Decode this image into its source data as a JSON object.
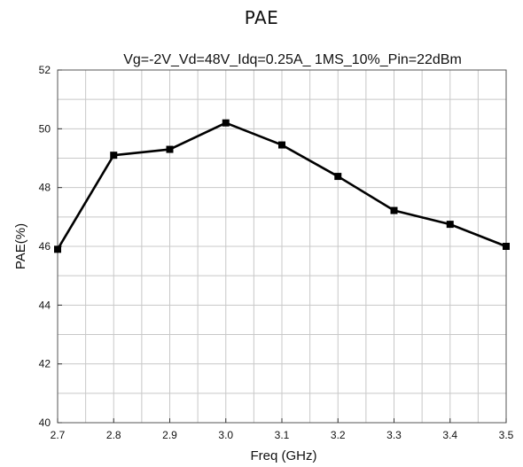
{
  "page_title": "PAE",
  "chart_data": {
    "type": "line",
    "title": "Vg=-2V_Vd=48V_Idq=0.25A_ 1MS_10%_Pin=22dBm",
    "xlabel": "Freq (GHz)",
    "ylabel": "PAE(%)",
    "xlim": [
      2.7,
      3.5
    ],
    "ylim": [
      40,
      52
    ],
    "x_ticks": [
      "2.7",
      "2.8",
      "2.9",
      "3.0",
      "3.1",
      "3.2",
      "3.3",
      "3.4",
      "3.5"
    ],
    "y_ticks": [
      "40",
      "42",
      "44",
      "46",
      "48",
      "50",
      "52"
    ],
    "grid": true,
    "series": [
      {
        "color": "#000000",
        "marker": "square",
        "x": [
          2.7,
          2.8,
          2.9,
          3.0,
          3.1,
          3.2,
          3.3,
          3.4,
          3.5
        ],
        "y": [
          45.9,
          49.1,
          49.3,
          50.2,
          49.45,
          48.38,
          47.22,
          46.75,
          46.0
        ]
      }
    ]
  }
}
